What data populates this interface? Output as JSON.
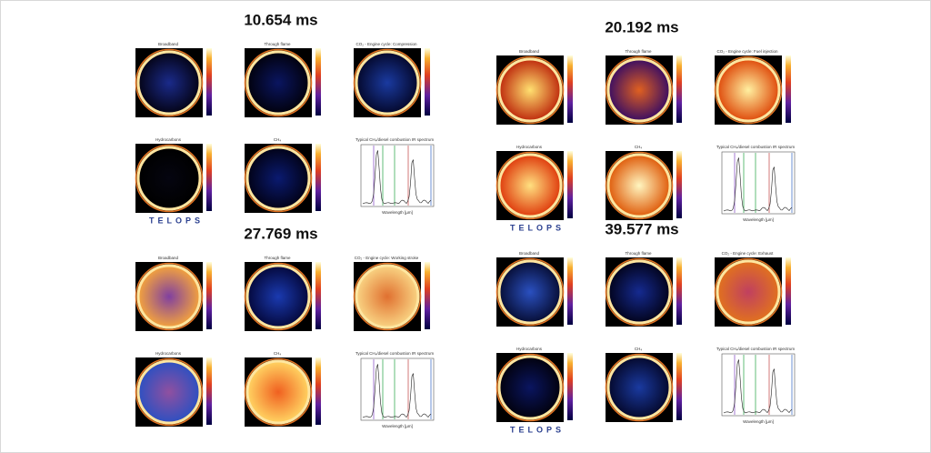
{
  "panels": [
    {
      "title": "10.654 ms",
      "logo": "TELOPS",
      "images": [
        {
          "label": "Broadband",
          "colors": [
            "#1a2a8a",
            "#05051a"
          ]
        },
        {
          "label": "Through flame",
          "colors": [
            "#0a1560",
            "#020210"
          ]
        },
        {
          "label": "CO₂ - Engine cycle: Compression",
          "colors": [
            "#1a3aa0",
            "#050a30"
          ]
        },
        {
          "label": "Hydrocarbons",
          "colors": [
            "#050510",
            "#000000"
          ]
        },
        {
          "label": "CH₄",
          "colors": [
            "#0a1a70",
            "#02031a"
          ]
        }
      ],
      "spectrum": {
        "title": "Typical CH₄/diesel combustion IR spectrum",
        "xlabel": "Wavelength [µm]"
      }
    },
    {
      "title": "20.192 ms",
      "logo": "TELOPS",
      "images": [
        {
          "label": "Broadband",
          "colors": [
            "#ffe070",
            "#c03010"
          ]
        },
        {
          "label": "Through flame",
          "colors": [
            "#e06020",
            "#401060"
          ]
        },
        {
          "label": "CO₂ - Engine cycle: Fuel injection",
          "colors": [
            "#fff0a0",
            "#e05010"
          ]
        },
        {
          "label": "Hydrocarbons",
          "colors": [
            "#ffe080",
            "#e04010"
          ]
        },
        {
          "label": "CH₄",
          "colors": [
            "#fff6c0",
            "#e06010"
          ]
        }
      ],
      "spectrum": {
        "title": "Typical CH₄/diesel combustion IR spectrum",
        "xlabel": "Wavelength [µm]"
      }
    },
    {
      "title": "27.769 ms",
      "images": [
        {
          "label": "Broadband",
          "colors": [
            "#8040a0",
            "#f0a040"
          ]
        },
        {
          "label": "Through flame",
          "colors": [
            "#1a3ab0",
            "#050a40"
          ]
        },
        {
          "label": "CO₂ - Engine cycle: Working stroke",
          "colors": [
            "#e07030",
            "#f8d080"
          ]
        },
        {
          "label": "Hydrocarbons",
          "colors": [
            "#9050a0",
            "#3050c0"
          ]
        },
        {
          "label": "CH₄",
          "colors": [
            "#f06020",
            "#ffd060"
          ]
        }
      ],
      "spectrum": {
        "title": "Typical CH₄/diesel combustion IR spectrum",
        "xlabel": "Wavelength [µm]"
      }
    },
    {
      "title": "39.577 ms",
      "logo": "TELOPS",
      "images": [
        {
          "label": "Broadband",
          "colors": [
            "#2a50c0",
            "#08103a"
          ]
        },
        {
          "label": "Through flame",
          "colors": [
            "#152a90",
            "#030520"
          ]
        },
        {
          "label": "CO₂ - Engine cycle: Exhaust",
          "colors": [
            "#c04060",
            "#e07020"
          ]
        },
        {
          "label": "Hydrocarbons",
          "colors": [
            "#0a1560",
            "#020210"
          ]
        },
        {
          "label": "CH₄",
          "colors": [
            "#1a3aa0",
            "#050a30"
          ]
        }
      ],
      "spectrum": {
        "title": "Typical CH₄/diesel combustion IR spectrum",
        "xlabel": "Wavelength [µm]"
      }
    }
  ]
}
